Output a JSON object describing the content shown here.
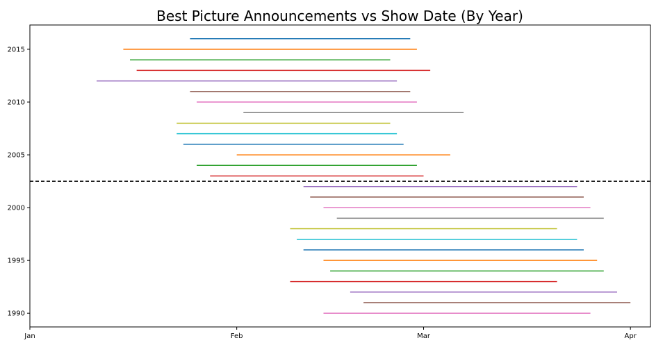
{
  "chart_data": {
    "type": "line",
    "title": "Best Picture Announcements vs Show Date (By Year)",
    "xlabel": "",
    "ylabel": "",
    "x_ticks": [
      {
        "label": "Jan",
        "date": "01-01"
      },
      {
        "label": "Feb",
        "date": "02-01"
      },
      {
        "label": "Mar",
        "date": "03-01"
      },
      {
        "label": "Apr",
        "date": "04-01"
      }
    ],
    "y_ticks": [
      1990,
      1995,
      2000,
      2005,
      2010,
      2015
    ],
    "xlim": [
      "01-01",
      "04-04"
    ],
    "ylim": [
      1988.7,
      2017.3
    ],
    "grid": false,
    "divider_year": 2002.5,
    "series": [
      {
        "year": 1990,
        "start": "02-14",
        "end": "03-26",
        "color": "#e377c2"
      },
      {
        "year": 1991,
        "start": "02-20",
        "end": "04-01",
        "color": "#8c564b"
      },
      {
        "year": 1992,
        "start": "02-18",
        "end": "03-30",
        "color": "#9467bd"
      },
      {
        "year": 1993,
        "start": "02-09",
        "end": "03-21",
        "color": "#d62728"
      },
      {
        "year": 1994,
        "start": "02-15",
        "end": "03-28",
        "color": "#2ca02c"
      },
      {
        "year": 1995,
        "start": "02-14",
        "end": "03-27",
        "color": "#ff7f0e"
      },
      {
        "year": 1996,
        "start": "02-11",
        "end": "03-25",
        "color": "#1f77b4"
      },
      {
        "year": 1997,
        "start": "02-10",
        "end": "03-24",
        "color": "#17becf"
      },
      {
        "year": 1998,
        "start": "02-09",
        "end": "03-21",
        "color": "#bcbd22"
      },
      {
        "year": 1999,
        "start": "02-16",
        "end": "03-28",
        "color": "#7f7f7f"
      },
      {
        "year": 2000,
        "start": "02-14",
        "end": "03-26",
        "color": "#e377c2"
      },
      {
        "year": 2001,
        "start": "02-12",
        "end": "03-25",
        "color": "#8c564b"
      },
      {
        "year": 2002,
        "start": "02-11",
        "end": "03-24",
        "color": "#9467bd"
      },
      {
        "year": 2003,
        "start": "01-28",
        "end": "03-01",
        "color": "#d62728"
      },
      {
        "year": 2004,
        "start": "01-26",
        "end": "02-28",
        "color": "#2ca02c"
      },
      {
        "year": 2005,
        "start": "02-01",
        "end": "03-05",
        "color": "#ff7f0e"
      },
      {
        "year": 2006,
        "start": "01-24",
        "end": "02-26",
        "color": "#1f77b4"
      },
      {
        "year": 2007,
        "start": "01-23",
        "end": "02-25",
        "color": "#17becf"
      },
      {
        "year": 2008,
        "start": "01-23",
        "end": "02-24",
        "color": "#bcbd22"
      },
      {
        "year": 2009,
        "start": "02-02",
        "end": "03-07",
        "color": "#7f7f7f"
      },
      {
        "year": 2010,
        "start": "01-26",
        "end": "02-28",
        "color": "#e377c2"
      },
      {
        "year": 2011,
        "start": "01-25",
        "end": "02-27",
        "color": "#8c564b"
      },
      {
        "year": 2012,
        "start": "01-11",
        "end": "02-25",
        "color": "#9467bd"
      },
      {
        "year": 2013,
        "start": "01-17",
        "end": "03-02",
        "color": "#d62728"
      },
      {
        "year": 2014,
        "start": "01-16",
        "end": "02-24",
        "color": "#2ca02c"
      },
      {
        "year": 2015,
        "start": "01-15",
        "end": "02-28",
        "color": "#ff7f0e"
      },
      {
        "year": 2016,
        "start": "01-25",
        "end": "02-27",
        "color": "#1f77b4"
      }
    ]
  }
}
